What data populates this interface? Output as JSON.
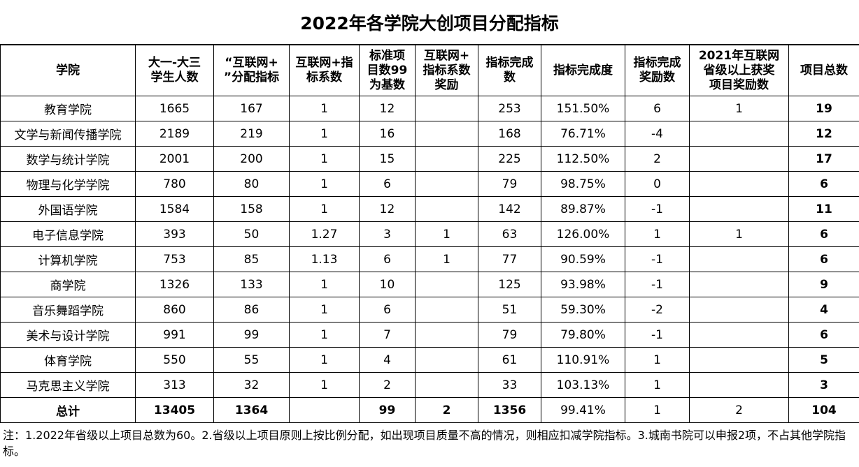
{
  "title": "2022年各学院大创项目分配指标",
  "table": {
    "header": [
      [
        "学院"
      ],
      [
        "大一-大三",
        "学生人数"
      ],
      [
        "“互联网+",
        "”分配指标"
      ],
      [
        "互联网+指",
        "标系数"
      ],
      [
        "标准项",
        "目数99",
        "为基数"
      ],
      [
        "互联网+",
        "指标系数",
        "奖励"
      ],
      [
        "指标完成",
        "数"
      ],
      [
        "指标完成度"
      ],
      [
        "指标完成",
        "奖励数"
      ],
      [
        "2021年互联网",
        "省级以上获奖",
        "项目奖励数"
      ],
      [
        "项目总数"
      ]
    ],
    "rows": [
      [
        "教育学院",
        "1665",
        "167",
        "1",
        "12",
        null,
        "253",
        "151.50%",
        "6",
        "1",
        "19"
      ],
      [
        "文学与新闻传播学院",
        "2189",
        "219",
        "1",
        "16",
        null,
        "168",
        "76.71%",
        "-4",
        null,
        "12"
      ],
      [
        "数学与统计学院",
        "2001",
        "200",
        "1",
        "15",
        null,
        "225",
        "112.50%",
        "2",
        null,
        "17"
      ],
      [
        "物理与化学学院",
        "780",
        "80",
        "1",
        "6",
        null,
        "79",
        "98.75%",
        "0",
        null,
        "6"
      ],
      [
        "外国语学院",
        "1584",
        "158",
        "1",
        "12",
        null,
        "142",
        "89.87%",
        "-1",
        null,
        "11"
      ],
      [
        "电子信息学院",
        "393",
        "50",
        "1.27",
        "3",
        "1",
        "63",
        "126.00%",
        "1",
        "1",
        "6"
      ],
      [
        "计算机学院",
        "753",
        "85",
        "1.13",
        "6",
        "1",
        "77",
        "90.59%",
        "-1",
        null,
        "6"
      ],
      [
        "商学院",
        "1326",
        "133",
        "1",
        "10",
        null,
        "125",
        "93.98%",
        "-1",
        null,
        "9"
      ],
      [
        "音乐舞蹈学院",
        "860",
        "86",
        "1",
        "6",
        null,
        "51",
        "59.30%",
        "-2",
        null,
        "4"
      ],
      [
        "美术与设计学院",
        "991",
        "99",
        "1",
        "7",
        null,
        "79",
        "79.80%",
        "-1",
        null,
        "6"
      ],
      [
        "体育学院",
        "550",
        "55",
        "1",
        "4",
        null,
        "61",
        "110.91%",
        "1",
        null,
        "5"
      ],
      [
        "马克思主义学院",
        "313",
        "32",
        "1",
        "2",
        null,
        "33",
        "103.13%",
        "1",
        null,
        "3"
      ]
    ],
    "total": [
      "总计",
      "13405",
      "1364",
      null,
      "99",
      "2",
      "1356",
      "99.41%",
      "1",
      "2",
      "104"
    ]
  },
  "note": "注：1.2022年省级以上项目总数为60。2.省级以上项目原则上按比例分配，如出现项目质量不高的情况，则相应扣减学院指标。3.城南书院可以申报2项，不占其他学院指标。"
}
